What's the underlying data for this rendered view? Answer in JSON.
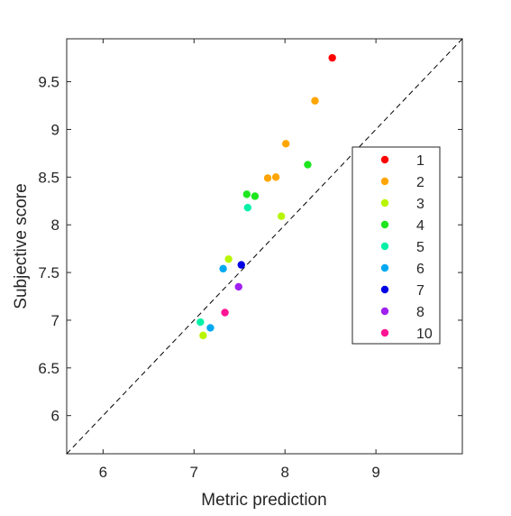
{
  "chart_data": {
    "type": "scatter",
    "title": "",
    "xlabel": "Metric prediction",
    "ylabel": "Subjective score",
    "xlim": [
      5.6,
      9.95
    ],
    "ylim": [
      5.6,
      9.95
    ],
    "x_ticks": [
      6,
      7,
      8,
      9
    ],
    "y_ticks": [
      6,
      6.5,
      7,
      7.5,
      8,
      8.5,
      9,
      9.5
    ],
    "x_tick_labels": [
      "6",
      "7",
      "8",
      "9"
    ],
    "y_tick_labels": [
      "6",
      "6.5",
      "7",
      "7.5",
      "8",
      "8.5",
      "9",
      "9.5"
    ],
    "grid": false,
    "reference_line": "y = x (dashed)",
    "legend_placement": "right",
    "series": [
      {
        "name": "1",
        "color": "#ff0000",
        "points": [
          [
            8.52,
            9.75
          ]
        ]
      },
      {
        "name": "2",
        "color": "#ffa500",
        "points": [
          [
            8.33,
            9.3
          ],
          [
            8.01,
            8.85
          ],
          [
            7.81,
            8.49
          ],
          [
            7.9,
            8.5
          ]
        ]
      },
      {
        "name": "3",
        "color": "#b8f500",
        "points": [
          [
            7.96,
            8.09
          ],
          [
            7.38,
            7.64
          ],
          [
            7.1,
            6.84
          ]
        ]
      },
      {
        "name": "4",
        "color": "#1ee61e",
        "points": [
          [
            8.25,
            8.63
          ],
          [
            7.58,
            8.32
          ],
          [
            7.67,
            8.3
          ]
        ]
      },
      {
        "name": "5",
        "color": "#00f0a8",
        "points": [
          [
            7.59,
            8.18
          ],
          [
            7.07,
            6.98
          ]
        ]
      },
      {
        "name": "6",
        "color": "#00a8f0",
        "points": [
          [
            7.32,
            7.54
          ],
          [
            7.18,
            6.92
          ]
        ]
      },
      {
        "name": "7",
        "color": "#0000e6",
        "points": [
          [
            7.52,
            7.58
          ]
        ]
      },
      {
        "name": "8",
        "color": "#a020f0",
        "points": [
          [
            7.49,
            7.35
          ]
        ]
      },
      {
        "name": "10",
        "color": "#ff1493",
        "points": [
          [
            7.34,
            7.08
          ]
        ]
      }
    ]
  }
}
